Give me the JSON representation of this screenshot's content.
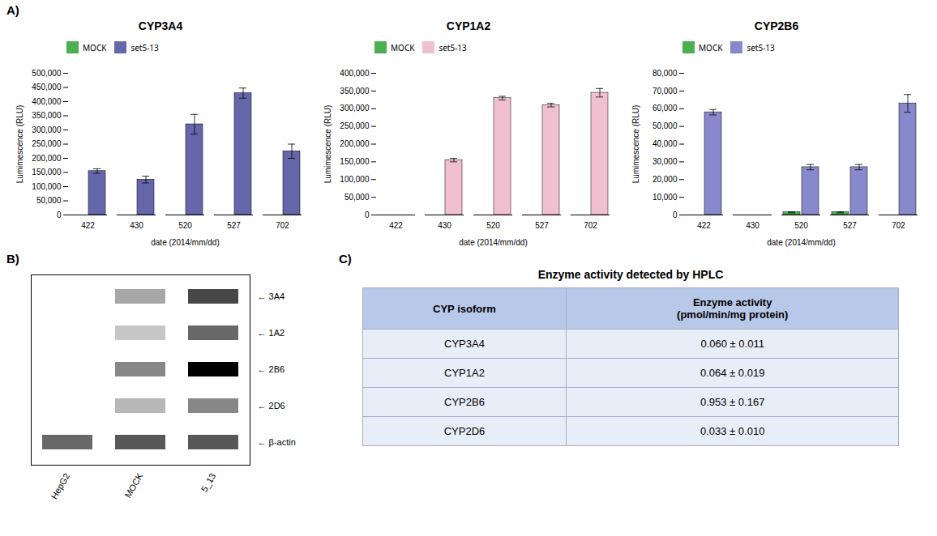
{
  "chart_data": [
    {
      "type": "bar",
      "title": "CYP3A4",
      "annotations": [
        "A)"
      ],
      "xlabel": "date (2014/mm/dd)",
      "ylabel": "Lumimescence (RLU)",
      "categories": [
        "422",
        "430",
        "520",
        "527",
        "702"
      ],
      "series": [
        {
          "name": "MOCK",
          "color": "#4CAF50",
          "values": [
            0,
            0,
            0,
            0,
            0
          ],
          "errors": [
            0,
            0,
            0,
            0,
            0
          ]
        },
        {
          "name": "set5-13",
          "color": "#6666aa",
          "values": [
            155000,
            125000,
            320000,
            430000,
            225000
          ],
          "errors": [
            8000,
            12000,
            35000,
            18000,
            25000
          ]
        }
      ],
      "ylim": [
        0,
        500000
      ],
      "yticks": [
        0,
        {
          "value": 50000,
          "label": "50,000"
        },
        {
          "value": 100000,
          "label": "100,000"
        },
        {
          "value": 150000,
          "label": "150,000"
        },
        {
          "value": 200000,
          "label": "200,000"
        },
        {
          "value": 250000,
          "label": "250,000"
        },
        {
          "value": 300000,
          "label": "300,000"
        },
        {
          "value": 350000,
          "label": "350,000"
        },
        {
          "value": 400000,
          "label": "400,000"
        },
        {
          "value": 450000,
          "label": "450,000"
        },
        {
          "value": 500000,
          "label": "500,000"
        }
      ],
      "legend": "upper left"
    },
    {
      "type": "bar",
      "title": "CYP1A2",
      "xlabel": "date (2014/mm/dd)",
      "ylabel": "Lumimescence (RLU)",
      "categories": [
        "422",
        "430",
        "520",
        "527",
        "702"
      ],
      "series": [
        {
          "name": "MOCK",
          "color": "#4CAF50",
          "values": [
            0,
            0,
            0,
            0,
            0
          ],
          "errors": [
            0,
            0,
            0,
            0,
            0
          ]
        },
        {
          "name": "set5-13",
          "color": "#f0c0d0",
          "values": [
            0,
            155000,
            330000,
            310000,
            345000
          ],
          "errors": [
            0,
            5000,
            5000,
            5000,
            12000
          ]
        }
      ],
      "ylim": [
        0,
        400000
      ],
      "yticks": [
        0,
        {
          "value": 50000,
          "label": "50,000"
        },
        {
          "value": 100000,
          "label": "100,000"
        },
        {
          "value": 150000,
          "label": "150,000"
        },
        {
          "value": 200000,
          "label": "200,000"
        },
        {
          "value": 250000,
          "label": "250,000"
        },
        {
          "value": 300000,
          "label": "300,000"
        },
        {
          "value": 350000,
          "label": "350,000"
        },
        {
          "value": 400000,
          "label": "400,000"
        }
      ],
      "legend": "upper left"
    },
    {
      "type": "bar",
      "title": "CYP2B6",
      "xlabel": "date (2014/mm/dd)",
      "ylabel": "Lumimescence (RLU)",
      "categories": [
        "422",
        "430",
        "520",
        "527",
        "702"
      ],
      "series": [
        {
          "name": "MOCK",
          "color": "#4CAF50",
          "values": [
            0,
            0,
            1500,
            1500,
            0
          ],
          "errors": [
            0,
            0,
            300,
            300,
            0
          ]
        },
        {
          "name": "set5-13",
          "color": "#8888cc",
          "values": [
            58000,
            0,
            27000,
            27000,
            63000
          ],
          "errors": [
            1500,
            0,
            1500,
            1500,
            5000
          ]
        }
      ],
      "ylim": [
        0,
        80000
      ],
      "yticks": [
        0,
        {
          "value": 10000,
          "label": "10,000"
        },
        {
          "value": 20000,
          "label": "20,000"
        },
        {
          "value": 30000,
          "label": "30,000"
        },
        {
          "value": 40000,
          "label": "40,000"
        },
        {
          "value": 50000,
          "label": "50,000"
        },
        {
          "value": 60000,
          "label": "60,000"
        },
        {
          "value": 70000,
          "label": "70,000"
        },
        {
          "value": 80000,
          "label": "80,000"
        }
      ],
      "legend": "upper left"
    },
    {
      "type": "blot",
      "annotations": [
        "B)"
      ],
      "categories": [
        "HepG2",
        "MOCK",
        "5_13"
      ],
      "series": [
        {
          "name": "← 3A4",
          "values": [
            0.0,
            0.8,
            1.4
          ]
        },
        {
          "name": "← 1A2",
          "values": [
            0.0,
            0.6,
            1.2
          ]
        },
        {
          "name": "← 2B6",
          "values": [
            0.0,
            1.0,
            1.8
          ]
        },
        {
          "name": "← 2D6",
          "values": [
            0.0,
            0.7,
            1.0
          ]
        },
        {
          "name": "← β-actin",
          "values": [
            1.2,
            1.3,
            1.3
          ]
        }
      ]
    },
    {
      "type": "table",
      "title": "Enzyme activity detected by HPLC",
      "annotations": [
        "C)"
      ],
      "columns": [
        "CYP isoform",
        "Enzyme activity\n(pmol/min/mg protein)"
      ],
      "rows": [
        [
          "CYP3A4",
          "0.060 ± 0.011"
        ],
        [
          "CYP1A2",
          "0.064 ± 0.019"
        ],
        [
          "CYP2B6",
          "0.953 ± 0.167"
        ],
        [
          "CYP2D6",
          "0.033 ± 0.010"
        ]
      ],
      "colors": [
        "#b8c8e8",
        "#e8eef8"
      ]
    }
  ]
}
